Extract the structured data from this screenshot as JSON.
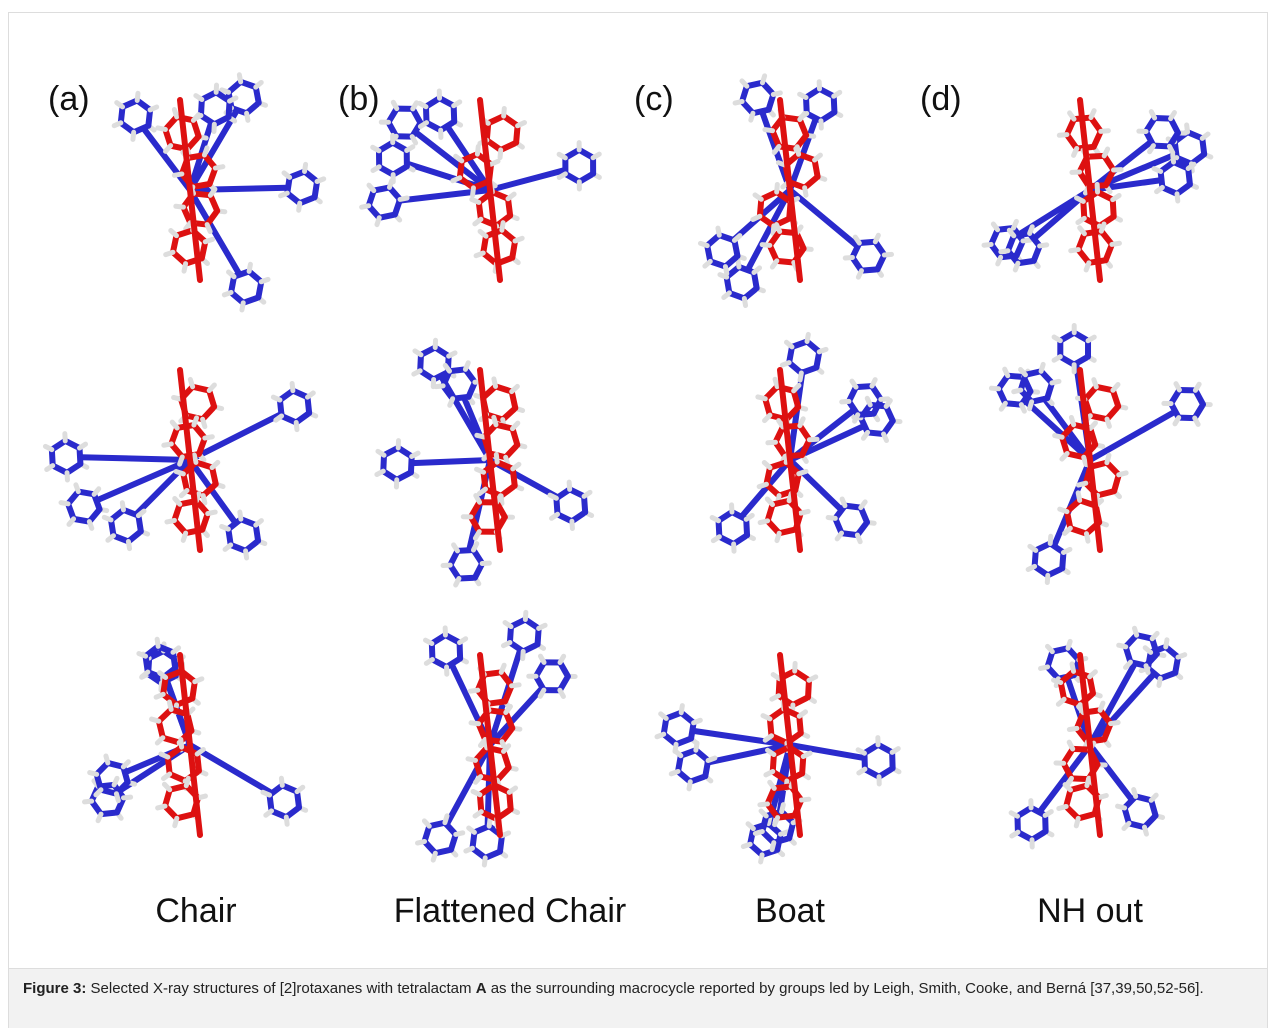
{
  "panels": [
    {
      "letter": "(a)",
      "name": "Chair"
    },
    {
      "letter": "(b)",
      "name": "Flattened Chair"
    },
    {
      "letter": "(c)",
      "name": "Boat"
    },
    {
      "letter": "(d)",
      "name": "NH out"
    }
  ],
  "caption": {
    "label": "Figure 3:",
    "text_before": " Selected X-ray structures of [2]rotaxanes with tetralactam ",
    "bold": "A",
    "text_after": " as the surrounding macrocycle reported by groups led by Leigh, Smith, Cooke, and Berná [37,39,50,52-56]."
  }
}
